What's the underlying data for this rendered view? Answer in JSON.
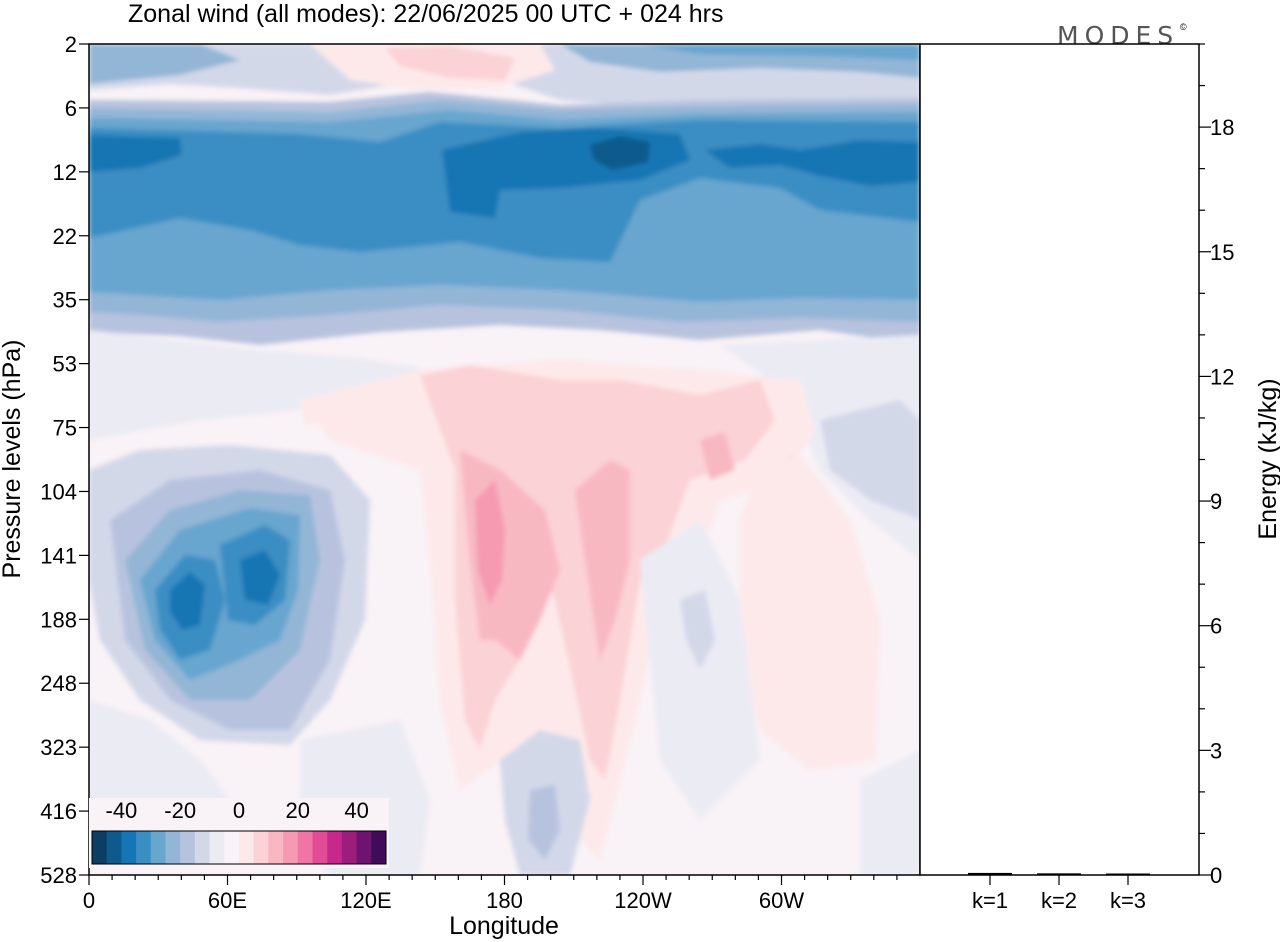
{
  "chart_data": {
    "type": "heatmap",
    "title": "Zonal wind (all modes):  22/06/2025  00 UTC  + 024 hrs",
    "brand": "MODES",
    "brand_mark": "©",
    "xlabel": "Longitude",
    "ylabel": "Pressure levels (hPa)",
    "x_ticks": [
      "0",
      "60E",
      "120E",
      "180",
      "120W",
      "60W"
    ],
    "x_tick_degrees": [
      0,
      60,
      120,
      180,
      240,
      300
    ],
    "xlim": [
      0,
      360
    ],
    "y_ticks": [
      "2",
      "6",
      "12",
      "22",
      "35",
      "53",
      "75",
      "104",
      "141",
      "188",
      "248",
      "323",
      "416",
      "528"
    ],
    "colorbar": {
      "tick_labels": [
        "-40",
        "-20",
        "0",
        "20",
        "40"
      ],
      "levels": [
        -45,
        -40,
        -35,
        -30,
        -25,
        -20,
        -15,
        -10,
        -5,
        0,
        5,
        10,
        15,
        20,
        25,
        30,
        35,
        40,
        45
      ],
      "colors": [
        "#0d3d62",
        "#0e5a8c",
        "#1476b3",
        "#3b8ec3",
        "#67a6cf",
        "#93b6d6",
        "#b7c3de",
        "#d3d8e9",
        "#ebebf4",
        "#f9f2f6",
        "#fde9ea",
        "#fbd2d6",
        "#f8b8c2",
        "#f59ab1",
        "#ef75a5",
        "#e14c97",
        "#c8288a",
        "#9b1d7c",
        "#6e1470",
        "#3f0c5a"
      ]
    },
    "wind_field": {
      "background": "#f9f2f6",
      "bands": [
        {
          "label": "upper_easterlies",
          "level_from": "6",
          "level_to": "35",
          "value": -35
        },
        {
          "label": "easterly_core",
          "level_from": "12",
          "level_to": "22",
          "value": -40
        }
      ],
      "cells": [
        {
          "lon": 55,
          "level": "141",
          "value": -35
        },
        {
          "lon": 70,
          "level": "141",
          "value": -40
        },
        {
          "lon": 175,
          "level": "141",
          "value": 25
        },
        {
          "lon": 225,
          "level": "141",
          "value": 20
        },
        {
          "lon": 318,
          "level": "141",
          "value": 20
        },
        {
          "lon": 150,
          "level": "2",
          "value": 5
        },
        {
          "lon": 195,
          "level": "53",
          "value": 10
        },
        {
          "lon": 340,
          "level": "75",
          "value": -10
        }
      ]
    },
    "energy_axis": {
      "label": "Energy (kJ/kg)",
      "ticks": [
        "0",
        "3",
        "6",
        "9",
        "12",
        "15",
        "18"
      ],
      "ylim": [
        0,
        20
      ],
      "categories": [
        "k=1",
        "k=2",
        "k=3"
      ],
      "values": [
        0.05,
        0.04,
        0.02
      ]
    }
  }
}
